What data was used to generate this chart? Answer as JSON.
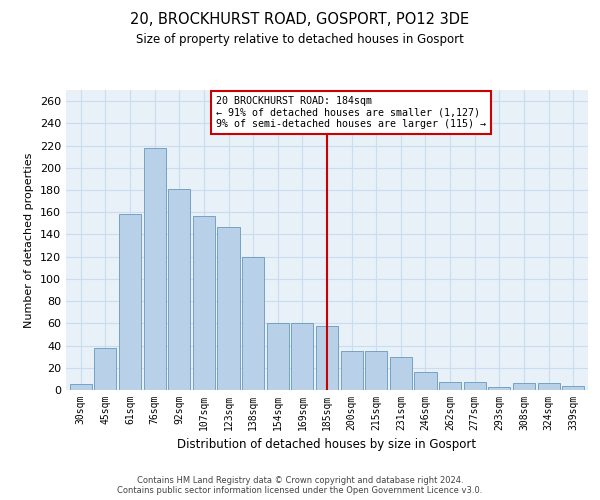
{
  "title_line1": "20, BROCKHURST ROAD, GOSPORT, PO12 3DE",
  "title_line2": "Size of property relative to detached houses in Gosport",
  "xlabel": "Distribution of detached houses by size in Gosport",
  "ylabel": "Number of detached properties",
  "categories": [
    "30sqm",
    "45sqm",
    "61sqm",
    "76sqm",
    "92sqm",
    "107sqm",
    "123sqm",
    "138sqm",
    "154sqm",
    "169sqm",
    "185sqm",
    "200sqm",
    "215sqm",
    "231sqm",
    "246sqm",
    "262sqm",
    "277sqm",
    "293sqm",
    "308sqm",
    "324sqm",
    "339sqm"
  ],
  "values": [
    5,
    38,
    158,
    218,
    181,
    157,
    147,
    120,
    60,
    60,
    58,
    35,
    35,
    30,
    16,
    7,
    7,
    3,
    6,
    6,
    4
  ],
  "bar_color": "#b8d0e8",
  "bar_edge_color": "#6699bb",
  "grid_color": "#c8ddf0",
  "background_color": "#e8f0f8",
  "vline_x_index": 10,
  "vline_color": "#cc0000",
  "annotation_text": "20 BROCKHURST ROAD: 184sqm\n← 91% of detached houses are smaller (1,127)\n9% of semi-detached houses are larger (115) →",
  "annotation_box_color": "#cc0000",
  "ylim": [
    0,
    270
  ],
  "yticks": [
    0,
    20,
    40,
    60,
    80,
    100,
    120,
    140,
    160,
    180,
    200,
    220,
    240,
    260
  ],
  "footer_line1": "Contains HM Land Registry data © Crown copyright and database right 2024.",
  "footer_line2": "Contains public sector information licensed under the Open Government Licence v3.0."
}
